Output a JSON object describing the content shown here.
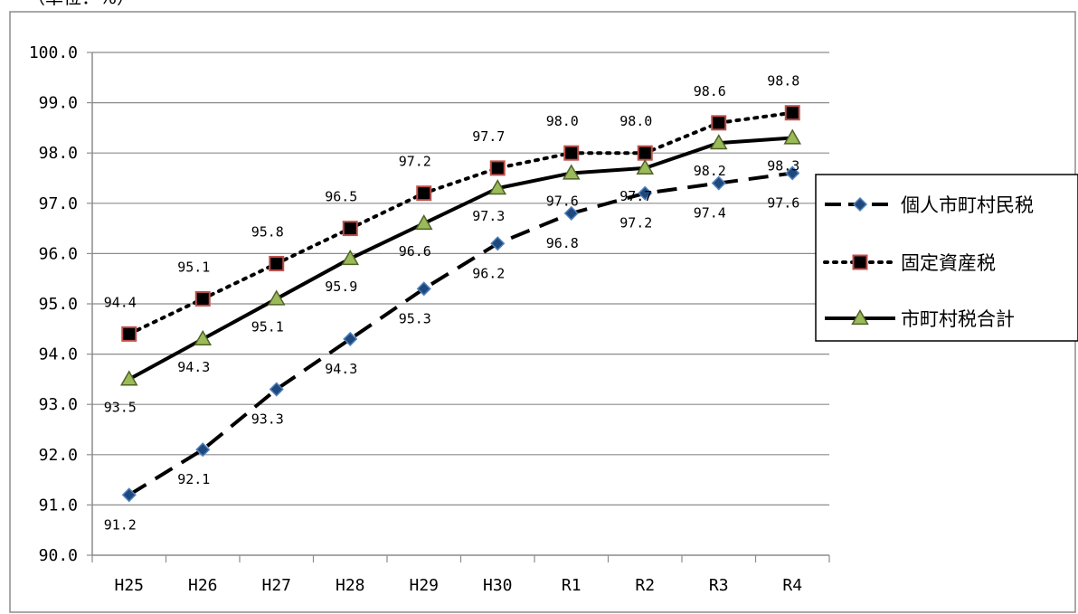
{
  "unit_label": "（単位：%）",
  "chart_data": {
    "type": "line",
    "title": "",
    "xlabel": "",
    "ylabel": "",
    "categories": [
      "H25",
      "H26",
      "H27",
      "H28",
      "H29",
      "H30",
      "R1",
      "R2",
      "R3",
      "R4"
    ],
    "ylim": [
      90.0,
      100.0
    ],
    "y_ticks": [
      "90.0",
      "91.0",
      "92.0",
      "93.0",
      "94.0",
      "95.0",
      "96.0",
      "97.0",
      "98.0",
      "99.0",
      "100.0"
    ],
    "grid": true,
    "legend_position": "right",
    "series": [
      {
        "name": "個人市町村民税",
        "values": [
          91.2,
          92.1,
          93.3,
          94.3,
          95.3,
          96.2,
          96.8,
          97.2,
          97.4,
          97.6
        ],
        "labels": [
          "91.2",
          "92.1",
          "93.3",
          "94.3",
          "95.3",
          "96.2",
          "96.8",
          "97.2",
          "97.4",
          "97.6"
        ],
        "line_style": "dashed",
        "marker": "diamond",
        "marker_color": "#1f497d",
        "marker_edge": "#4f81bd"
      },
      {
        "name": "固定資産税",
        "values": [
          94.4,
          95.1,
          95.8,
          96.5,
          97.2,
          97.7,
          98.0,
          98.0,
          98.6,
          98.8
        ],
        "labels": [
          "94.4",
          "95.1",
          "95.8",
          "96.5",
          "97.2",
          "97.7",
          "98.0",
          "98.0",
          "98.6",
          "98.8"
        ],
        "line_style": "dotted",
        "marker": "square",
        "marker_color": "#000000",
        "marker_edge": "#c0504d"
      },
      {
        "name": "市町村税合計",
        "values": [
          93.5,
          94.3,
          95.1,
          95.9,
          96.6,
          97.3,
          97.6,
          97.7,
          98.2,
          98.3
        ],
        "labels": [
          "93.5",
          "94.3",
          "95.1",
          "95.9",
          "96.6",
          "97.3",
          "97.6",
          "97.7",
          "98.2",
          "98.3"
        ],
        "line_style": "solid",
        "marker": "triangle",
        "marker_color": "#9bbb59",
        "marker_edge": "#4f6228"
      }
    ]
  }
}
